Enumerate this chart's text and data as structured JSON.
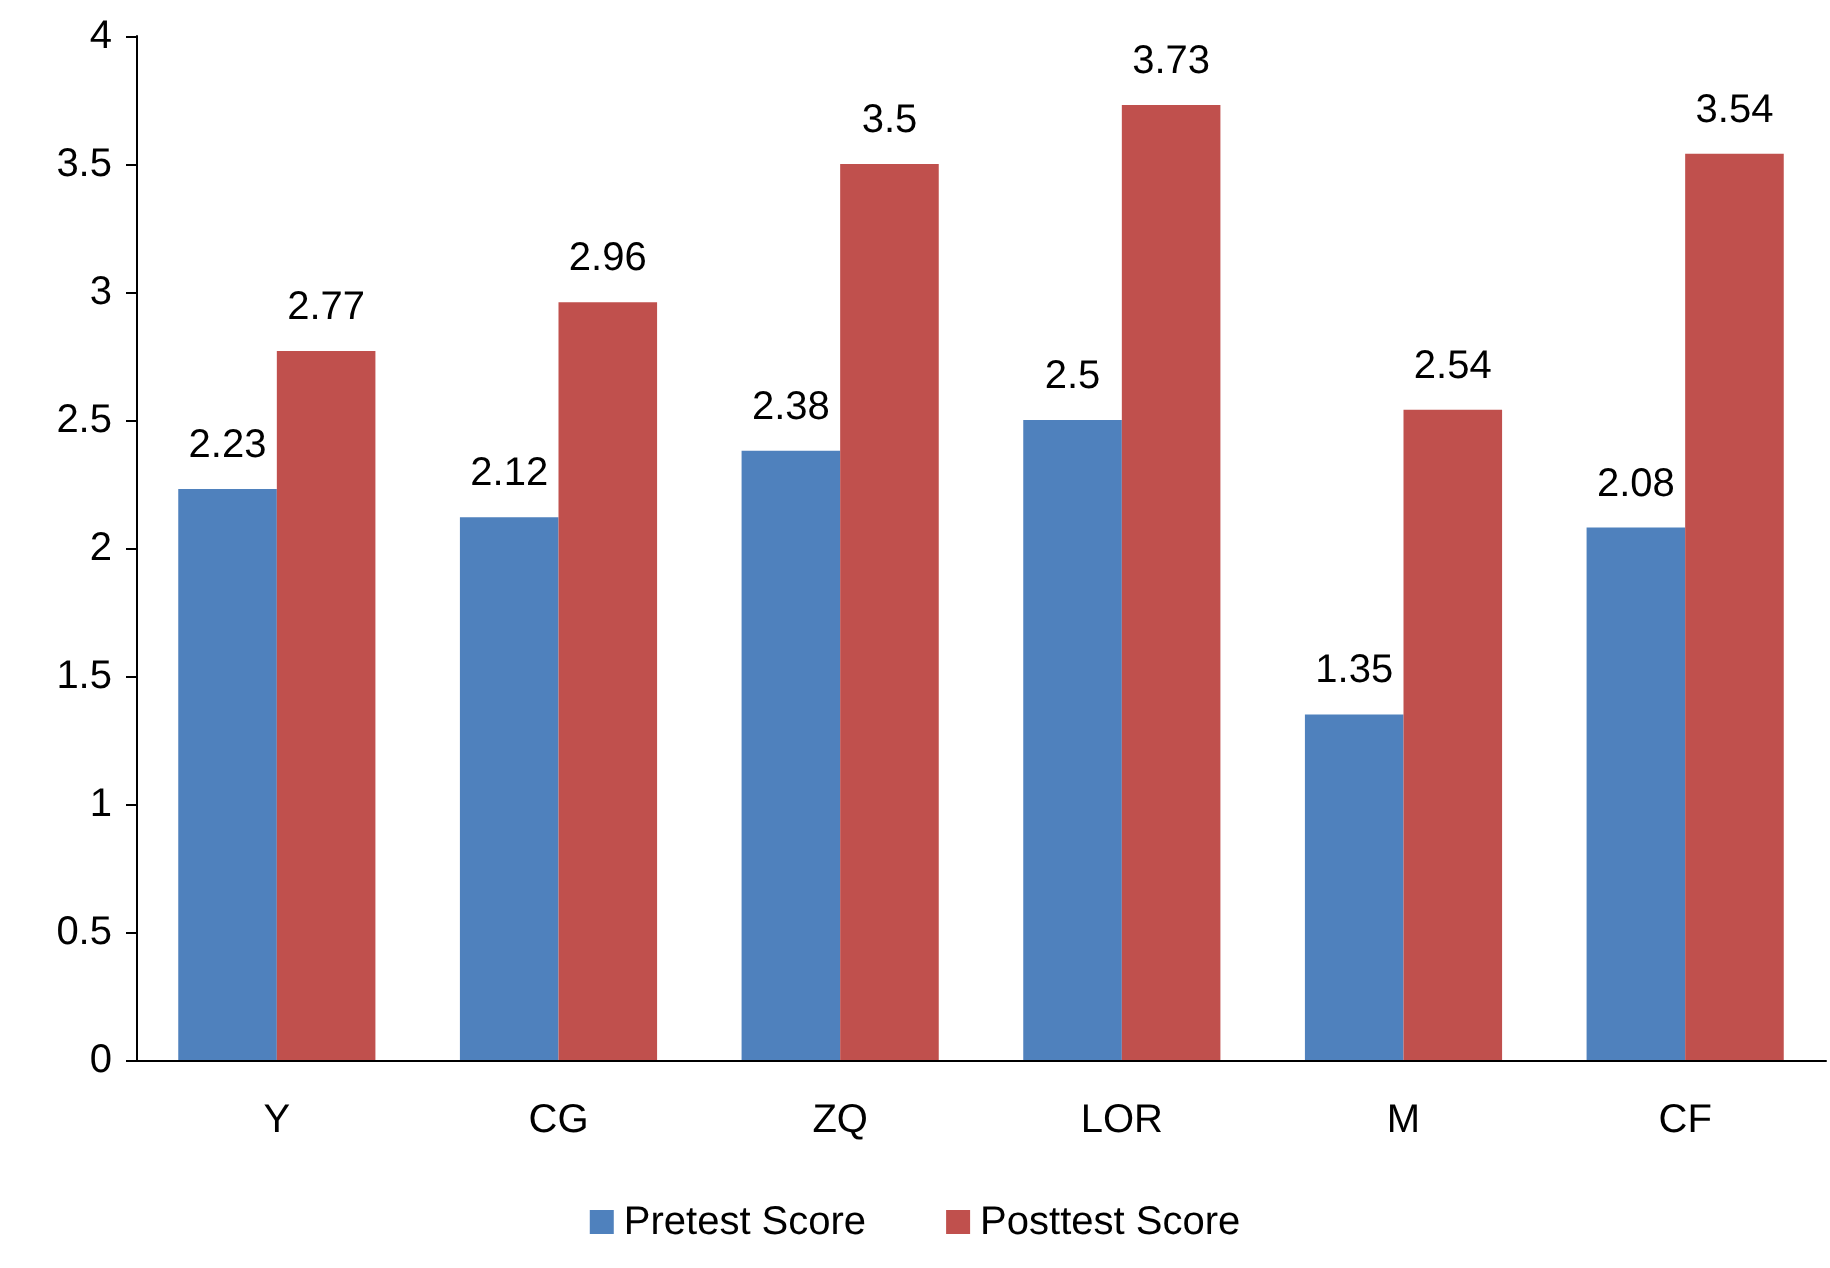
{
  "chart_data": {
    "type": "bar",
    "categories": [
      "Y",
      "CG",
      "ZQ",
      "LOR",
      "M",
      "CF"
    ],
    "series": [
      {
        "name": "Pretest Score",
        "color": "#4f81bd",
        "values": [
          2.23,
          2.12,
          2.38,
          2.5,
          1.35,
          2.08
        ]
      },
      {
        "name": "Posttest Score",
        "color": "#c0504d",
        "values": [
          2.77,
          2.96,
          3.5,
          3.73,
          2.54,
          3.54
        ]
      }
    ],
    "ylim": [
      0,
      4
    ],
    "yticks": [
      0,
      0.5,
      1,
      1.5,
      2,
      2.5,
      3,
      3.5,
      4
    ],
    "grid": false,
    "legend": "bottom",
    "data_labels": true
  }
}
